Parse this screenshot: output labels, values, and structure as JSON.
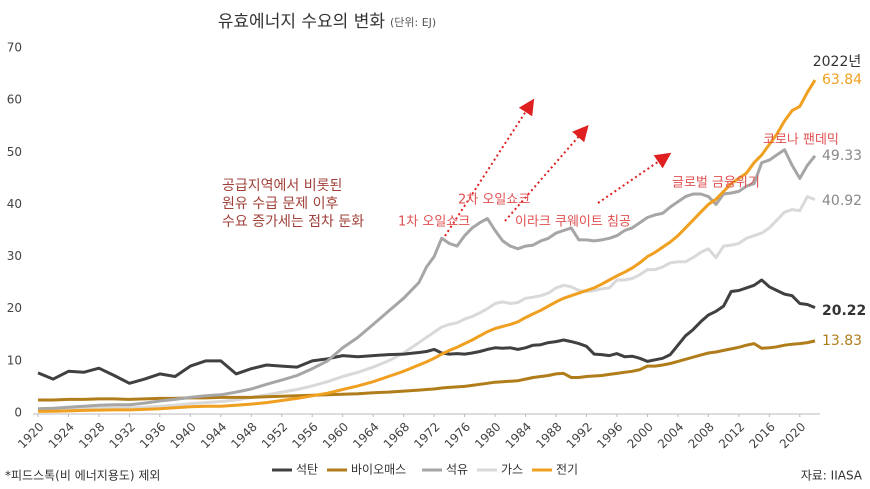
{
  "chart_data": {
    "type": "line",
    "title": "유효에너지 수요의 변화",
    "subtitle": "(단위: EJ)",
    "x": [
      1920,
      1922,
      1924,
      1926,
      1928,
      1930,
      1932,
      1934,
      1936,
      1938,
      1940,
      1942,
      1944,
      1946,
      1948,
      1950,
      1952,
      1954,
      1956,
      1958,
      1960,
      1962,
      1964,
      1966,
      1968,
      1970,
      1971,
      1972,
      1973,
      1974,
      1975,
      1976,
      1977,
      1978,
      1979,
      1980,
      1981,
      1982,
      1983,
      1984,
      1985,
      1986,
      1987,
      1988,
      1989,
      1990,
      1991,
      1992,
      1993,
      1994,
      1995,
      1996,
      1997,
      1998,
      1999,
      2000,
      2001,
      2002,
      2003,
      2004,
      2005,
      2006,
      2007,
      2008,
      2009,
      2010,
      2011,
      2012,
      2013,
      2014,
      2015,
      2016,
      2017,
      2018,
      2019,
      2020,
      2021,
      2022
    ],
    "xlim": [
      1920,
      2022
    ],
    "xticks": [
      1920,
      1924,
      1928,
      1932,
      1936,
      1940,
      1944,
      1948,
      1952,
      1956,
      1960,
      1964,
      1968,
      1972,
      1976,
      1980,
      1984,
      1988,
      1992,
      1996,
      2000,
      2004,
      2008,
      2012,
      2016,
      2020
    ],
    "ylim": [
      0,
      70
    ],
    "yticks": [
      0,
      10,
      20,
      30,
      40,
      50,
      60,
      70
    ],
    "grid": false,
    "legend": "bottom",
    "series": [
      {
        "name": "석탄",
        "color": "#404040",
        "values": [
          7.7,
          6.5,
          8,
          7.8,
          8.6,
          7.2,
          5.7,
          6.5,
          7.5,
          7,
          9,
          10,
          10,
          7.5,
          8.5,
          9.2,
          9,
          8.8,
          10,
          10.4,
          11,
          10.8,
          11,
          11.2,
          11.3,
          11.6,
          11.8,
          12.2,
          11.5,
          11.3,
          11.4,
          11.3,
          11.5,
          11.8,
          12.2,
          12.5,
          12.4,
          12.5,
          12.2,
          12.5,
          13,
          13.1,
          13.5,
          13.7,
          14,
          13.7,
          13.3,
          12.8,
          11.3,
          11.2,
          11,
          11.4,
          10.8,
          10.9,
          10.5,
          9.9,
          10.2,
          10.5,
          11.2,
          13,
          14.8,
          16,
          17.5,
          18.8,
          19.5,
          20.5,
          23.3,
          23.5,
          24,
          24.5,
          25.5,
          24.2,
          23.5,
          22.8,
          22.5,
          21,
          20.8,
          20.22
        ]
      },
      {
        "name": "바이오매스",
        "color": "#b07d1a",
        "values": [
          2.5,
          2.5,
          2.6,
          2.6,
          2.7,
          2.7,
          2.6,
          2.7,
          2.8,
          2.8,
          2.9,
          2.9,
          3,
          3,
          3,
          3.1,
          3.2,
          3.3,
          3.4,
          3.5,
          3.6,
          3.7,
          3.9,
          4,
          4.2,
          4.4,
          4.5,
          4.6,
          4.8,
          4.9,
          5,
          5.1,
          5.3,
          5.5,
          5.7,
          5.9,
          6,
          6.1,
          6.2,
          6.5,
          6.8,
          7,
          7.2,
          7.5,
          7.6,
          6.8,
          6.8,
          7,
          7.1,
          7.2,
          7.4,
          7.6,
          7.8,
          8,
          8.3,
          9,
          9,
          9.2,
          9.5,
          9.9,
          10.3,
          10.7,
          11.1,
          11.5,
          11.7,
          12,
          12.3,
          12.6,
          13,
          13.3,
          12.4,
          12.5,
          12.7,
          13,
          13.2,
          13.3,
          13.5,
          13.83
        ]
      },
      {
        "name": "석유",
        "color": "#a6a6a6",
        "values": [
          0.8,
          0.9,
          1.1,
          1.3,
          1.5,
          1.6,
          1.6,
          1.9,
          2.3,
          2.6,
          3,
          3.3,
          3.5,
          4,
          4.6,
          5.5,
          6.3,
          7.2,
          8.5,
          10,
          12.5,
          14.5,
          17,
          19.5,
          22,
          25,
          28,
          30,
          33.5,
          32.5,
          32,
          34,
          35.5,
          36.5,
          37.3,
          35,
          33,
          32,
          31.5,
          32,
          32.2,
          33,
          33.5,
          34.5,
          35,
          35.5,
          33.2,
          33.2,
          33,
          33.2,
          33.5,
          34,
          35,
          35.5,
          36.5,
          37.5,
          38,
          38.3,
          39.5,
          40.5,
          41.5,
          42,
          42,
          41.5,
          40,
          42,
          42.2,
          42.5,
          43.5,
          44,
          48,
          48.5,
          49.5,
          50.5,
          47.5,
          45,
          47.5,
          49.33
        ]
      },
      {
        "name": "가스",
        "color": "#d9d9d9",
        "values": [
          0.5,
          0.6,
          0.7,
          0.8,
          0.9,
          1,
          1,
          1.1,
          1.3,
          1.5,
          1.8,
          2,
          2.2,
          2.5,
          3,
          3.5,
          4,
          4.5,
          5.2,
          6,
          7,
          7.8,
          8.8,
          10,
          11.5,
          13.5,
          14.5,
          15.5,
          16.5,
          17,
          17.3,
          18,
          18.5,
          19.2,
          20,
          21,
          21.3,
          21,
          21.2,
          22,
          22.2,
          22.5,
          23,
          24,
          24.5,
          24.2,
          23.5,
          23.3,
          23.5,
          23.8,
          24,
          25.5,
          25.5,
          25.8,
          26.5,
          27.5,
          27.5,
          28,
          28.8,
          29,
          29,
          29.8,
          30.8,
          31.5,
          29.8,
          32,
          32.2,
          32.5,
          33.5,
          34,
          34.5,
          35.5,
          37,
          38.5,
          39,
          38.8,
          41.5,
          40.92
        ]
      },
      {
        "name": "전기",
        "color": "#f0a020",
        "values": [
          0.3,
          0.35,
          0.4,
          0.5,
          0.55,
          0.6,
          0.6,
          0.7,
          0.8,
          1,
          1.2,
          1.3,
          1.3,
          1.5,
          1.7,
          2,
          2.4,
          2.8,
          3.3,
          3.8,
          4.5,
          5.2,
          6,
          7,
          8,
          9.2,
          9.8,
          10.5,
          11.3,
          12,
          12.6,
          13.3,
          14,
          14.8,
          15.6,
          16.2,
          16.6,
          17,
          17.5,
          18.3,
          19,
          19.7,
          20.5,
          21.3,
          22,
          22.5,
          23,
          23.5,
          24,
          24.7,
          25.5,
          26.3,
          27,
          27.8,
          28.8,
          30,
          30.8,
          31.8,
          32.8,
          34,
          35.5,
          37,
          38.5,
          40,
          41,
          42.5,
          44,
          45,
          46,
          48,
          49.5,
          51.5,
          53.5,
          56,
          58,
          58.8,
          61.5,
          63.84
        ]
      }
    ],
    "end_label": "2022년",
    "annotations": [
      {
        "lines": [
          "공급지역에서 비롯된",
          "원유 수급 문제 이후",
          "수요 증가세는 점차 둔화"
        ]
      },
      {
        "text": "1차 오일쇼크"
      },
      {
        "text": "2차 오일쇼크"
      },
      {
        "text": "이라크 쿠웨이트 침공"
      },
      {
        "text": "글로벌 금융위기"
      },
      {
        "text": "코로나 팬데믹"
      }
    ],
    "footnote": "*피드스톡(비 에너지용도) 제외",
    "source": "자료: IIASA"
  }
}
